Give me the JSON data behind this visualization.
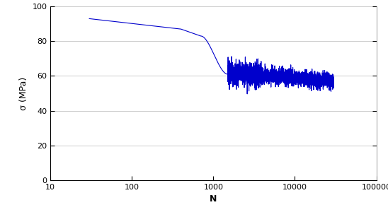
{
  "title": "",
  "xlabel": "N",
  "ylabel": "σ (MPa)",
  "xlim": [
    10,
    100000
  ],
  "ylim": [
    0,
    100
  ],
  "yticks": [
    0,
    20,
    40,
    60,
    80,
    100
  ],
  "line_color": "#0000CC",
  "line_width": 0.8,
  "background_color": "#ffffff",
  "grid_color": "#cccccc",
  "smooth_segment": {
    "x_start": 30,
    "x_end": 1500,
    "y_start": 93,
    "y_mid1_x": 400,
    "y_mid1": 87,
    "y_steep_start_x": 700,
    "y_steep_start": 83,
    "y_end": 61
  },
  "noisy_segment": {
    "x_start": 1500,
    "x_end": 30000,
    "y_mean_start": 62,
    "y_mean_end": 57,
    "noise_std": 2.2
  }
}
